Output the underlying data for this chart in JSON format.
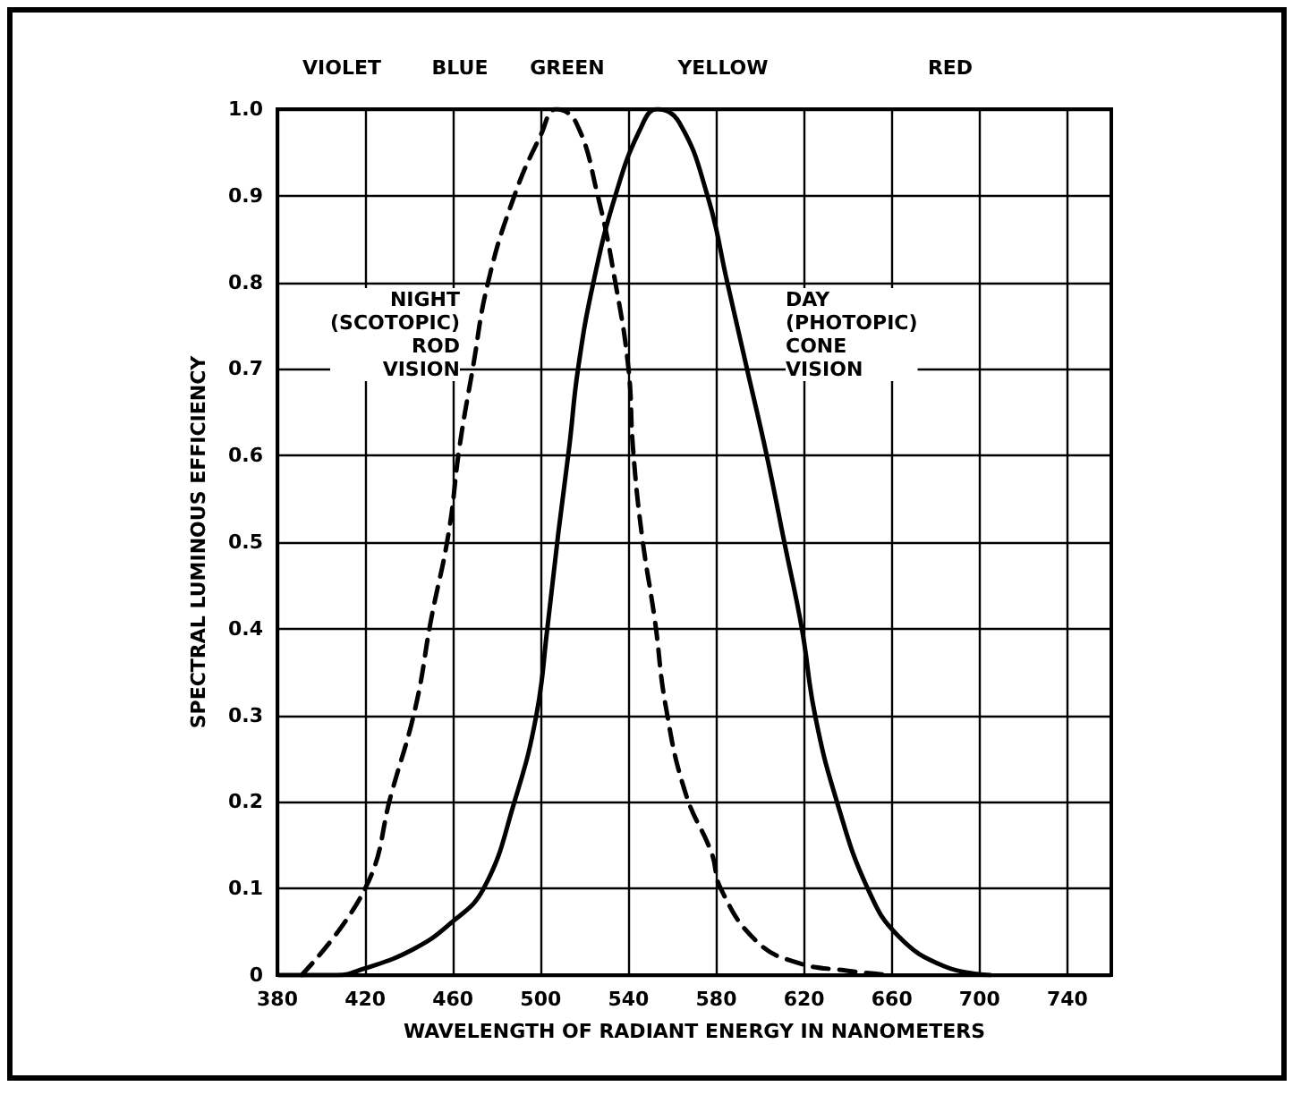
{
  "chart_data": {
    "type": "line",
    "xlabel": "WAVELENGTH OF RADIANT ENERGY IN NANOMETERS",
    "ylabel": "SPECTRAL LUMINOUS EFFICIENCY",
    "series": [
      {
        "color": "#000000",
        "line_style": "dashed",
        "x": [
          391,
          420,
          432,
          443,
          450,
          458,
          463,
          469,
          476,
          488,
          500,
          507,
          516,
          526,
          534,
          540,
          542,
          546,
          552,
          557,
          566,
          578,
          582,
          598,
          616,
          640,
          660
        ],
        "values": [
          0,
          0.1,
          0.21,
          0.31,
          0.41,
          0.51,
          0.61,
          0.7,
          0.8,
          0.9,
          0.97,
          1.0,
          0.985,
          0.9,
          0.8,
          0.7,
          0.61,
          0.51,
          0.41,
          0.31,
          0.21,
          0.14,
          0.1,
          0.04,
          0.015,
          0.005,
          0
        ]
      },
      {
        "color": "#000000",
        "line_style": "solid",
        "x": [
          381,
          407,
          419,
          442,
          459,
          474,
          488,
          498,
          503,
          508,
          513,
          517,
          524,
          534,
          545,
          553,
          563,
          576,
          585,
          594,
          603,
          611,
          619,
          625,
          635,
          649,
          663,
          684,
          705
        ],
        "values": [
          0,
          0,
          0.007,
          0.03,
          0.06,
          0.1,
          0.2,
          0.3,
          0.4,
          0.51,
          0.61,
          0.7,
          0.8,
          0.9,
          0.975,
          1.0,
          0.985,
          0.9,
          0.8,
          0.7,
          0.6,
          0.5,
          0.4,
          0.3,
          0.2,
          0.1,
          0.045,
          0.01,
          0
        ]
      }
    ],
    "xlim": [
      380,
      760
    ],
    "xticks": [
      380,
      420,
      460,
      500,
      540,
      580,
      620,
      660,
      700,
      740
    ],
    "ylim": [
      0,
      1
    ],
    "yticks": [
      0,
      0.1,
      0.2,
      0.3,
      0.4,
      0.5,
      0.6,
      0.7,
      0.8,
      0.9,
      {
        "value": 1,
        "label": "1.0"
      }
    ],
    "grid": true,
    "marker": "none",
    "annotations": [
      "NIGHT\n(SCOTOPIC)\nROD\nVISION",
      "DAY\n(PHOTOPIC)\nCONE\nVISION",
      "VIOLET",
      "BLUE",
      "GREEN",
      "YELLOW",
      "RED"
    ]
  }
}
